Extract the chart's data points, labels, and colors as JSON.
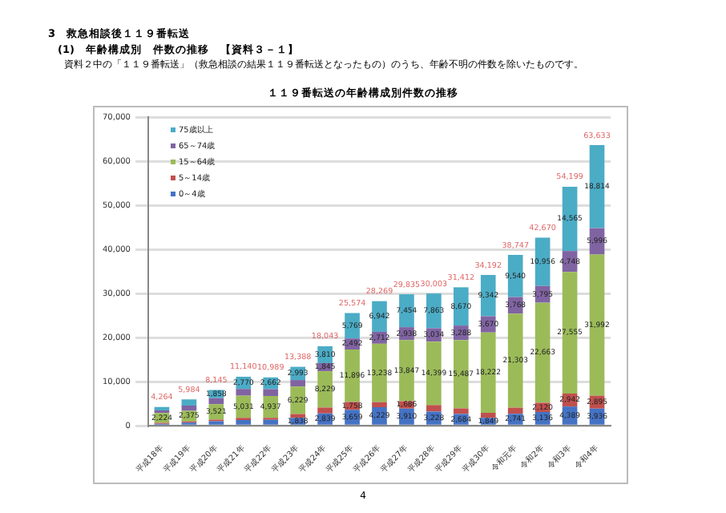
{
  "chart_data": {
    "type": "bar",
    "title": "１１９番転送の年齢構成別件数の推移",
    "annotations": [
      "3　救急相談後１１９番転送",
      "(1)　年齢構成別　件数の推移　【資料３－１】",
      "資料２中の「１１９番転送」（救急相談の結果１１９番転送となったもの）のうち、年齢不明の件数を除いたものです。",
      "4"
    ],
    "categories": [
      "平成18年",
      "平成19年",
      "平成20年",
      "平成21年",
      "平成22年",
      "平成23年",
      "平成24年",
      "平成25年",
      "平成26年",
      "平成27年",
      "平成28年",
      "平成29年",
      "平成30年",
      "令和元年",
      "令和2年",
      "令和3年",
      "令和4年"
    ],
    "stacked": true,
    "series": [
      {
        "name": "0～4歳",
        "color": "#4472c4",
        "values": [
          486,
          755,
          1065,
          1343,
          1369,
          1838,
          2839,
          3659,
          4229,
          3910,
          3228,
          2684,
          1849,
          2741,
          3136,
          4389,
          3936
        ],
        "value_labels": [
          null,
          null,
          null,
          null,
          null,
          "1,838",
          "2,839",
          "3,659",
          "4,229",
          "3,910",
          "3,228",
          "2,684",
          "1,849",
          "2,741",
          "3,136",
          "4,389",
          "3,936"
        ]
      },
      {
        "name": "5～14歳",
        "color": "#c0504d",
        "values": [
          199,
          275,
          345,
          469,
          474,
          852,
          1320,
          1758,
          1148,
          1686,
          1479,
          1283,
          1109,
          1395,
          2120,
          2942,
          2895
        ],
        "value_labels": [
          null,
          null,
          null,
          null,
          null,
          null,
          null,
          "1,758",
          null,
          "1,686",
          null,
          null,
          null,
          null,
          "2,120",
          "2,942",
          "2,895"
        ]
      },
      {
        "name": "15～64歳",
        "color": "#9bbb59",
        "values": [
          2224,
          2375,
          3521,
          5031,
          4937,
          6229,
          8229,
          11896,
          13238,
          13847,
          14399,
          15487,
          18222,
          21303,
          22663,
          27555,
          31992
        ],
        "value_labels": [
          "2,224",
          "2,375",
          "3,521",
          "5,031",
          "4,937",
          "6,229",
          "8,229",
          "11,896",
          "13,238",
          "13,847",
          "14,399",
          "15,487",
          "18,222",
          "21,303",
          "22,663",
          "27,555",
          "31,992"
        ]
      },
      {
        "name": "65～74歳",
        "color": "#8064a2",
        "values": [
          615,
          1213,
          1356,
          1527,
          1547,
          1476,
          1845,
          2492,
          2712,
          2938,
          3034,
          3288,
          3670,
          3768,
          3795,
          4748,
          5996
        ],
        "value_labels": [
          null,
          null,
          null,
          null,
          null,
          null,
          "1,845",
          "2,492",
          "2,712",
          "2,938",
          "3,034",
          "3,288",
          "3,670",
          "3,768",
          "3,795",
          "4,748",
          "5,996"
        ]
      },
      {
        "name": "75歳以上",
        "color": "#4bacc6",
        "values": [
          740,
          1366,
          1858,
          2770,
          2662,
          2993,
          3810,
          5769,
          6942,
          7454,
          7863,
          8670,
          9342,
          9540,
          10956,
          14565,
          18814
        ],
        "value_labels": [
          null,
          null,
          "1,858",
          "2,770",
          "2,662",
          "2,993",
          "3,810",
          "5,769",
          "6,942",
          "7,454",
          "7,863",
          "8,670",
          "9,342",
          "9,540",
          "10,956",
          "14,565",
          "18,814"
        ]
      }
    ],
    "totals": [
      "4,264",
      "5,984",
      "8,145",
      "11,140",
      "10,989",
      "13,388",
      "18,043",
      "25,574",
      "28,269",
      "29,835",
      "30,003",
      "31,412",
      "34,192",
      "38,747",
      "42,670",
      "54,199",
      "63,633"
    ],
    "ylim": [
      0,
      70000
    ],
    "yticks": [
      {
        "value": 0,
        "label": "0"
      },
      {
        "value": 10000,
        "label": "10,000"
      },
      {
        "value": 20000,
        "label": "20,000"
      },
      {
        "value": 30000,
        "label": "30,000"
      },
      {
        "value": 40000,
        "label": "40,000"
      },
      {
        "value": 50000,
        "label": "50,000"
      },
      {
        "value": 60000,
        "label": "60,000"
      },
      {
        "value": 70000,
        "label": "70,000"
      }
    ],
    "grid": "y",
    "legend": "top left"
  }
}
